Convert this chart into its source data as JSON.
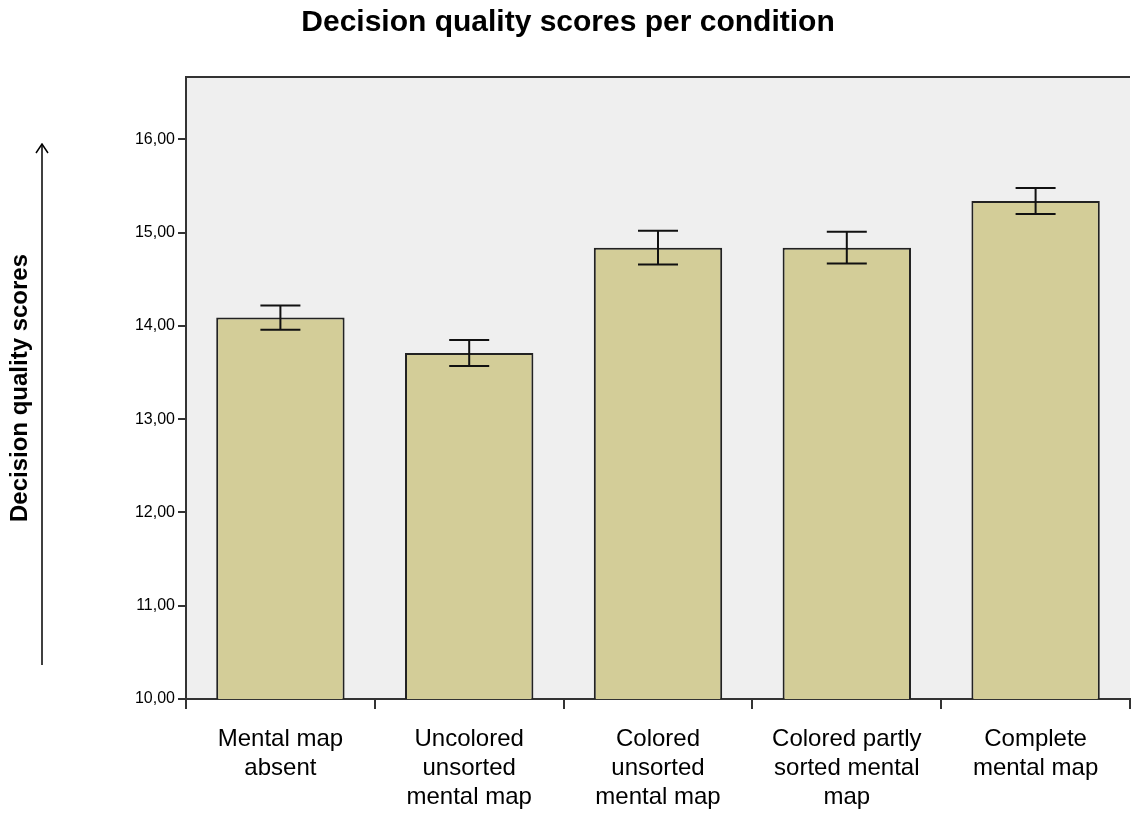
{
  "chart_data": {
    "type": "bar",
    "title": "Decision quality scores per condition",
    "ylabel": "Decision quality scores",
    "categories": [
      "Mental map absent",
      "Uncolored unsorted mental map",
      "Colored unsorted mental map",
      "Colored partly sorted mental map",
      "Complete mental map"
    ],
    "values": [
      14.09,
      13.71,
      14.84,
      14.84,
      15.34
    ],
    "errors": [
      0.13,
      0.14,
      0.18,
      0.17,
      0.14
    ],
    "color": "#d3cd98",
    "ylim": [
      10,
      16.67
    ],
    "yticks": [
      {
        "value": 10,
        "label": "10,00"
      },
      {
        "value": 11,
        "label": "11,00"
      },
      {
        "value": 12,
        "label": "12,00"
      },
      {
        "value": 13,
        "label": "13,00"
      },
      {
        "value": 14,
        "label": "14,00"
      },
      {
        "value": 15,
        "label": "15,00"
      },
      {
        "value": 16,
        "label": "16,00"
      }
    ],
    "grid": false,
    "legend": false
  }
}
